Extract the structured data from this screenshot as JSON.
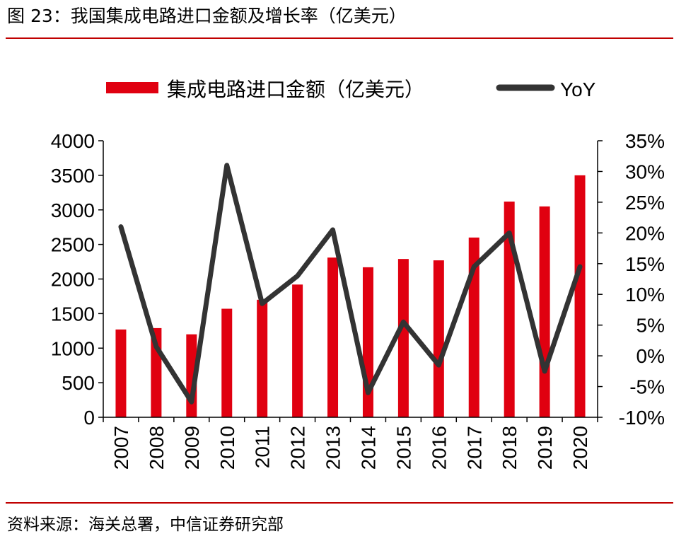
{
  "title": "图 23：我国集成电路进口金额及增长率（亿美元）",
  "source": "资料来源：海关总署，中信证券研究部",
  "colors": {
    "bar": "#e00010",
    "line": "#333333",
    "accent_rule": "#c00000"
  },
  "chart_data": {
    "type": "bar",
    "categories": [
      "2007",
      "2008",
      "2009",
      "2010",
      "2011",
      "2012",
      "2013",
      "2014",
      "2015",
      "2016",
      "2017",
      "2018",
      "2019",
      "2020"
    ],
    "series": [
      {
        "name": "集成电路进口金额（亿美元）",
        "type": "bar",
        "axis": "left",
        "values": [
          1270,
          1290,
          1200,
          1570,
          1700,
          1920,
          2310,
          2170,
          2290,
          2270,
          2600,
          3120,
          3050,
          3500
        ]
      },
      {
        "name": "YoY",
        "type": "line",
        "axis": "right",
        "values": [
          21,
          1.5,
          -7.5,
          31,
          8.5,
          13,
          20.5,
          -6,
          5.5,
          -1.5,
          14.5,
          20,
          -2.5,
          14.5
        ]
      }
    ],
    "ylim": [
      0,
      4000
    ],
    "y_ticks": [
      "0",
      "500",
      "1000",
      "1500",
      "2000",
      "2500",
      "3000",
      "3500",
      "4000"
    ],
    "y2lim": [
      -10,
      35
    ],
    "y2_ticks": [
      "-10%",
      "-5%",
      "0%",
      "5%",
      "10%",
      "15%",
      "20%",
      "25%",
      "30%",
      "35%"
    ],
    "legend_position": "top",
    "grid": false
  }
}
